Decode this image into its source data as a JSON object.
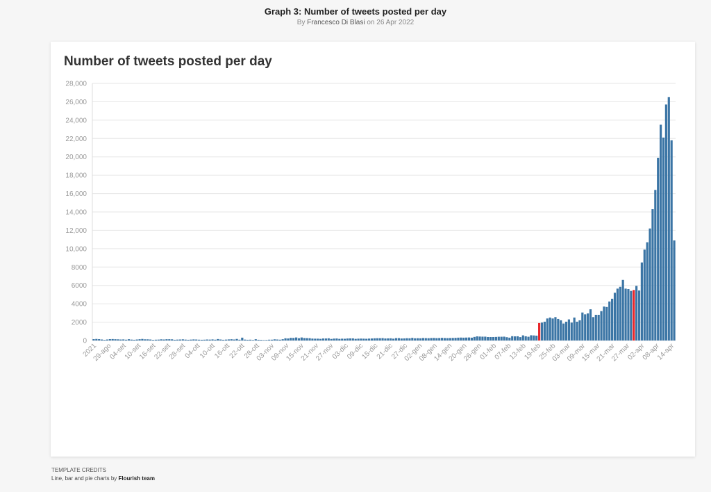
{
  "header": {
    "title": "Graph 3: Number of tweets posted per day",
    "byline_prefix": "By",
    "author": "Francesco Di Blasi",
    "date_text": "on 26 Apr 2022"
  },
  "colors": {
    "bar": "#3b75a5",
    "highlight": "#e8262a",
    "grid": "#e6e6e6",
    "tick_text": "#999999"
  },
  "footer": {
    "credits_heading": "Template credits",
    "credits_text": "Line, bar and pie charts by",
    "credits_link": "Flourish team"
  },
  "chart_data": {
    "type": "bar",
    "title": "Number of tweets posted per day",
    "xlabel": "",
    "ylabel": "",
    "ylim": [
      0,
      28000
    ],
    "grid": true,
    "ytick_labels": [
      "0",
      "2000",
      "4000",
      "6000",
      "8000",
      "10,000",
      "12,000",
      "14,000",
      "16,000",
      "18,000",
      "20,000",
      "22,000",
      "24,000",
      "26,000",
      "28,000"
    ],
    "x_tick_labels": [
      "2021",
      "29-ago",
      "04-set",
      "10-set",
      "16-set",
      "22-set",
      "28-set",
      "04-ott",
      "10-ott",
      "16-ott",
      "22-ott",
      "28-ott",
      "03-nov",
      "09-nov",
      "15-nov",
      "21-nov",
      "27-nov",
      "03-dic",
      "09-dic",
      "15-dic",
      "21-dic",
      "27-dic",
      "02-gen",
      "08-gen",
      "14-gen",
      "20-gen",
      "26-gen",
      "01-feb",
      "07-feb",
      "13-feb",
      "19-feb",
      "25-feb",
      "03-mar",
      "09-mar",
      "15-mar",
      "21-mar",
      "27-mar",
      "02-apr",
      "08-apr",
      "14-apr"
    ],
    "highlighted_indices": [
      165,
      200
    ],
    "values": [
      150,
      170,
      150,
      110,
      70,
      110,
      150,
      160,
      140,
      130,
      110,
      120,
      90,
      140,
      100,
      80,
      110,
      140,
      170,
      130,
      130,
      110,
      70,
      90,
      100,
      130,
      110,
      140,
      140,
      130,
      80,
      100,
      110,
      130,
      100,
      80,
      100,
      120,
      110,
      90,
      80,
      90,
      110,
      100,
      120,
      90,
      160,
      110,
      80,
      100,
      120,
      140,
      110,
      170,
      90,
      310,
      100,
      80,
      90,
      60,
      140,
      80,
      70,
      50,
      60,
      90,
      90,
      130,
      110,
      90,
      140,
      240,
      220,
      290,
      280,
      330,
      250,
      330,
      270,
      260,
      250,
      210,
      200,
      200,
      180,
      220,
      220,
      240,
      170,
      210,
      220,
      180,
      200,
      190,
      220,
      230,
      230,
      180,
      200,
      210,
      200,
      190,
      210,
      220,
      240,
      250,
      250,
      260,
      220,
      230,
      240,
      200,
      260,
      260,
      220,
      230,
      250,
      240,
      290,
      240,
      250,
      240,
      270,
      260,
      250,
      270,
      280,
      260,
      270,
      290,
      270,
      260,
      270,
      280,
      290,
      310,
      320,
      310,
      320,
      330,
      310,
      390,
      450,
      430,
      420,
      420,
      380,
      380,
      380,
      390,
      410,
      410,
      420,
      360,
      310,
      470,
      450,
      460,
      370,
      560,
      460,
      410,
      570,
      550,
      530,
      1900,
      1950,
      2050,
      2400,
      2500,
      2400,
      2550,
      2350,
      2200,
      1850,
      2050,
      2300,
      1950,
      2500,
      2050,
      2200,
      3050,
      2850,
      2950,
      3400,
      2550,
      2800,
      2800,
      3200,
      3700,
      3650,
      4250,
      4550,
      5200,
      5650,
      5850,
      6600,
      5650,
      5600,
      5400,
      5500,
      5950,
      5450,
      8500,
      9900,
      10700,
      12200,
      14300,
      16400,
      19900,
      23500,
      22100,
      25700,
      26500,
      21800,
      10900
    ]
  }
}
